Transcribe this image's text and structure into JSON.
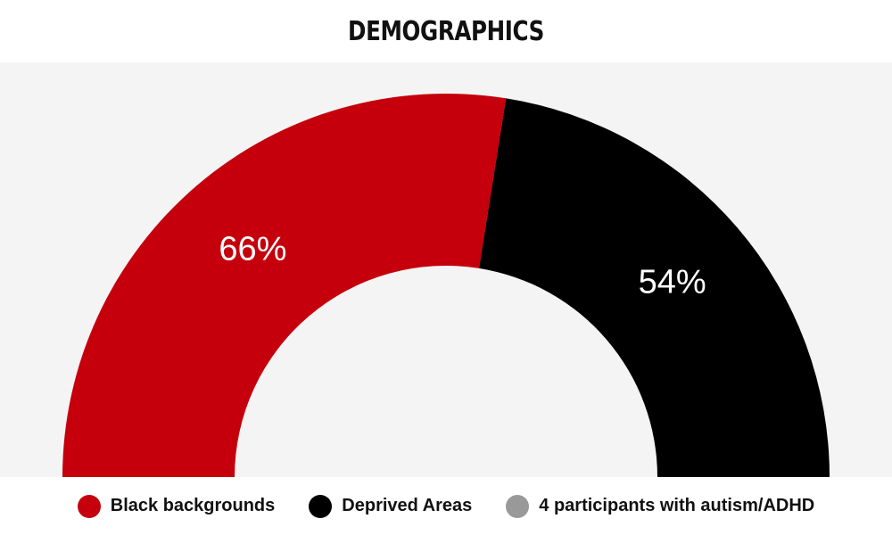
{
  "page_title": "DEMOGRAPHICS",
  "chart_data": {
    "type": "pie",
    "variant": "semicircle-donut",
    "title": "DEMOGRAPHICS",
    "slices": [
      {
        "name": "Black backgrounds",
        "value": 66,
        "label": "66%",
        "color": "#c5000c"
      },
      {
        "name": "Deprived Areas",
        "value": 54,
        "label": "54%",
        "color": "#000000"
      }
    ],
    "legend": [
      {
        "name": "Black backgrounds",
        "color": "#c5000c"
      },
      {
        "name": "Deprived Areas",
        "color": "#000000"
      },
      {
        "name": "4 participants with autism/ADHD",
        "color": "#999999"
      }
    ],
    "legend_placement": "bottom",
    "background_color": "#f4f4f4"
  }
}
